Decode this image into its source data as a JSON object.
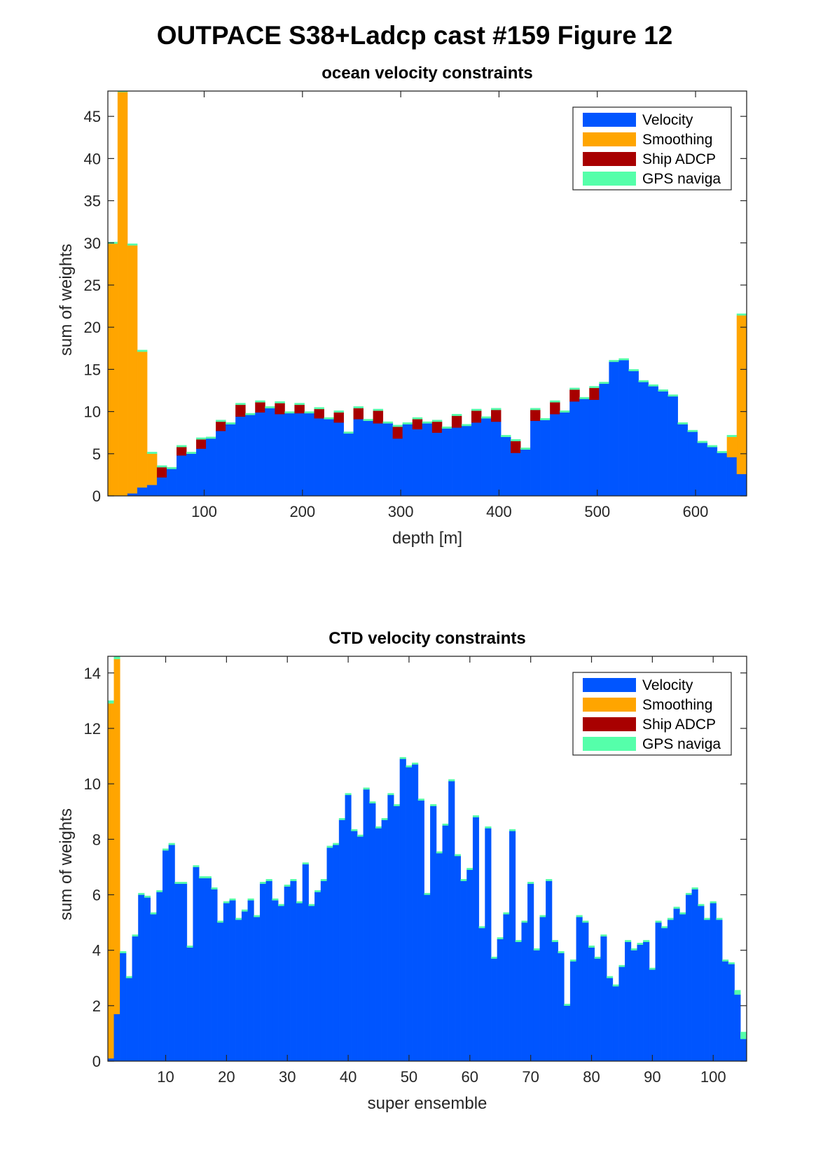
{
  "figure_title": "OUTPACE S38+Ladcp cast #159  Figure 12",
  "colors": {
    "velocity": "#0055ff",
    "smoothing": "#ffa500",
    "ship_adcp": "#a80000",
    "gps": "#55ffaa"
  },
  "chart_data": [
    {
      "type": "bar",
      "stacked": true,
      "title": "ocean velocity constraints",
      "xlabel": "depth [m]",
      "ylabel": "sum of weights",
      "xlim": [
        2,
        652
      ],
      "ylim": [
        0,
        48
      ],
      "xticks": [
        100,
        200,
        300,
        400,
        500,
        600
      ],
      "yticks": [
        0,
        5,
        10,
        15,
        20,
        25,
        30,
        35,
        40,
        45
      ],
      "legend": {
        "position": "top-right",
        "entries": [
          "Velocity",
          "Smoothing",
          "Ship ADCP",
          "GPS naviga"
        ]
      },
      "bin_width": 10,
      "x": [
        7,
        17,
        27,
        37,
        47,
        57,
        67,
        77,
        87,
        97,
        107,
        117,
        127,
        137,
        147,
        157,
        167,
        177,
        187,
        197,
        207,
        217,
        227,
        237,
        247,
        257,
        267,
        277,
        287,
        297,
        307,
        317,
        327,
        337,
        347,
        357,
        367,
        377,
        387,
        397,
        407,
        417,
        427,
        437,
        447,
        457,
        467,
        477,
        487,
        497,
        507,
        517,
        527,
        537,
        547,
        557,
        567,
        577,
        587,
        597,
        607,
        617,
        627,
        637,
        647
      ],
      "series": [
        {
          "name": "Velocity",
          "values": [
            0,
            0,
            0.3,
            1.0,
            1.3,
            2.2,
            3.2,
            4.8,
            5.0,
            5.6,
            6.8,
            7.7,
            8.5,
            9.4,
            9.6,
            9.9,
            10.4,
            9.7,
            9.8,
            9.8,
            9.8,
            9.2,
            9.1,
            8.7,
            7.4,
            9.1,
            8.9,
            8.6,
            8.6,
            6.8,
            8.5,
            7.9,
            8.6,
            7.5,
            8.0,
            8.1,
            8.3,
            8.7,
            9.2,
            8.8,
            7.0,
            5.1,
            5.5,
            8.9,
            9.0,
            9.7,
            9.9,
            11.2,
            11.5,
            11.4,
            13.3,
            15.9,
            16.1,
            14.8,
            13.5,
            13.0,
            12.4,
            11.8,
            8.5,
            7.6,
            6.3,
            5.8,
            5.1,
            4.6,
            2.6
          ]
        },
        {
          "name": "Smoothing",
          "values": [
            29.9,
            47.9,
            29.4,
            16.1,
            3.7,
            0,
            0,
            0,
            0,
            0,
            0,
            0,
            0,
            0,
            0,
            0,
            0,
            0,
            0,
            0,
            0,
            0,
            0,
            0,
            0,
            0,
            0,
            0,
            0,
            0,
            0,
            0,
            0,
            0,
            0,
            0,
            0,
            0,
            0,
            0,
            0,
            0,
            0,
            0,
            0,
            0,
            0,
            0,
            0,
            0,
            0,
            0,
            0,
            0,
            0,
            0,
            0,
            0,
            0,
            0,
            0,
            0,
            0,
            2.4,
            18.8
          ]
        },
        {
          "name": "Ship ADCP",
          "values": [
            0,
            0,
            0,
            0,
            0,
            1.2,
            0,
            1.0,
            0,
            1.1,
            0,
            1.1,
            0,
            1.4,
            0,
            1.2,
            0,
            1.3,
            0,
            1.0,
            0,
            1.1,
            0,
            1.2,
            0,
            1.3,
            0,
            1.5,
            0,
            1.4,
            0,
            1.2,
            0,
            1.3,
            0,
            1.4,
            0,
            1.4,
            0,
            1.4,
            0,
            1.4,
            0,
            1.3,
            0,
            1.4,
            0,
            1.4,
            0,
            1.4,
            0,
            0,
            0,
            0,
            0,
            0,
            0,
            0,
            0,
            0,
            0,
            0,
            0,
            0,
            0
          ]
        },
        {
          "name": "GPS naviga",
          "values": [
            0.2,
            0.2,
            0.2,
            0.2,
            0.2,
            0.2,
            0.2,
            0.2,
            0.2,
            0.2,
            0.2,
            0.2,
            0.2,
            0.2,
            0.2,
            0.2,
            0.2,
            0.2,
            0.2,
            0.2,
            0.2,
            0.2,
            0.2,
            0.2,
            0.2,
            0.2,
            0.2,
            0.2,
            0.2,
            0.2,
            0.2,
            0.2,
            0.2,
            0.2,
            0.2,
            0.2,
            0.2,
            0.2,
            0.2,
            0.2,
            0.2,
            0.2,
            0.2,
            0.2,
            0.2,
            0.2,
            0.2,
            0.2,
            0.2,
            0.2,
            0.2,
            0.2,
            0.2,
            0.2,
            0.2,
            0.2,
            0.2,
            0.2,
            0.2,
            0.2,
            0.2,
            0.2,
            0.2,
            0.2,
            0.2
          ]
        }
      ]
    },
    {
      "type": "bar",
      "stacked": true,
      "title": "CTD velocity constraints",
      "xlabel": "super ensemble",
      "ylabel": "sum of weights",
      "xlim": [
        0.5,
        105.5
      ],
      "ylim": [
        0,
        14.6
      ],
      "xticks": [
        10,
        20,
        30,
        40,
        50,
        60,
        70,
        80,
        90,
        100
      ],
      "yticks": [
        0,
        2,
        4,
        6,
        8,
        10,
        12,
        14
      ],
      "legend": {
        "position": "top-right",
        "entries": [
          "Velocity",
          "Smoothing",
          "Ship ADCP",
          "GPS naviga"
        ]
      },
      "bin_width": 1,
      "x": [
        1,
        2,
        3,
        4,
        5,
        6,
        7,
        8,
        9,
        10,
        11,
        12,
        13,
        14,
        15,
        16,
        17,
        18,
        19,
        20,
        21,
        22,
        23,
        24,
        25,
        26,
        27,
        28,
        29,
        30,
        31,
        32,
        33,
        34,
        35,
        36,
        37,
        38,
        39,
        40,
        41,
        42,
        43,
        44,
        45,
        46,
        47,
        48,
        49,
        50,
        51,
        52,
        53,
        54,
        55,
        56,
        57,
        58,
        59,
        60,
        61,
        62,
        63,
        64,
        65,
        66,
        67,
        68,
        69,
        70,
        71,
        72,
        73,
        74,
        75,
        76,
        77,
        78,
        79,
        80,
        81,
        82,
        83,
        84,
        85,
        86,
        87,
        88,
        89,
        90,
        91,
        92,
        93,
        94,
        95,
        96,
        97,
        98,
        99,
        100,
        101,
        102,
        103,
        104,
        105
      ],
      "series": [
        {
          "name": "Velocity",
          "values": [
            0.1,
            1.7,
            3.9,
            3.0,
            4.5,
            6.0,
            5.9,
            5.3,
            6.1,
            7.6,
            7.8,
            6.4,
            6.4,
            4.1,
            7.0,
            6.6,
            6.6,
            6.2,
            5.0,
            5.7,
            5.8,
            5.1,
            5.4,
            5.8,
            5.2,
            6.4,
            6.5,
            5.8,
            5.6,
            6.3,
            6.5,
            5.7,
            7.1,
            5.6,
            6.1,
            6.5,
            7.7,
            7.8,
            8.7,
            9.6,
            8.3,
            8.1,
            9.8,
            9.3,
            8.4,
            8.7,
            9.6,
            9.2,
            10.9,
            10.6,
            10.7,
            9.4,
            6.0,
            9.2,
            7.5,
            8.5,
            10.1,
            7.4,
            6.5,
            6.9,
            8.8,
            4.8,
            8.4,
            3.7,
            4.4,
            5.3,
            8.3,
            4.3,
            5.0,
            6.4,
            4.0,
            5.2,
            6.5,
            4.3,
            3.9,
            2.0,
            3.6,
            5.2,
            5.0,
            4.1,
            3.7,
            4.5,
            3.0,
            2.7,
            3.4,
            4.3,
            4.0,
            4.2,
            4.3,
            3.3,
            5.0,
            4.8,
            5.1,
            5.5,
            5.3,
            6.0,
            6.2,
            5.6,
            5.1,
            5.7,
            5.1,
            3.6,
            3.5,
            2.4,
            0.8
          ]
        },
        {
          "name": "Smoothing",
          "values": [
            12.8,
            12.8,
            0,
            0,
            0,
            0,
            0,
            0,
            0,
            0,
            0,
            0,
            0,
            0,
            0,
            0,
            0,
            0,
            0,
            0,
            0,
            0,
            0,
            0,
            0,
            0,
            0,
            0,
            0,
            0,
            0,
            0,
            0,
            0,
            0,
            0,
            0,
            0,
            0,
            0,
            0,
            0,
            0,
            0,
            0,
            0,
            0,
            0,
            0,
            0,
            0,
            0,
            0,
            0,
            0,
            0,
            0,
            0,
            0,
            0,
            0,
            0,
            0,
            0,
            0,
            0,
            0,
            0,
            0,
            0,
            0,
            0,
            0,
            0,
            0,
            0,
            0,
            0,
            0,
            0,
            0,
            0,
            0,
            0,
            0,
            0,
            0,
            0,
            0,
            0,
            0,
            0,
            0,
            0,
            0,
            0,
            0,
            0,
            0,
            0,
            0,
            0,
            0,
            0,
            0
          ]
        },
        {
          "name": "Ship ADCP",
          "values": [
            0,
            0,
            0,
            0,
            0,
            0,
            0,
            0,
            0,
            0,
            0,
            0,
            0,
            0,
            0,
            0,
            0,
            0,
            0,
            0,
            0,
            0,
            0,
            0,
            0,
            0,
            0,
            0,
            0,
            0,
            0,
            0,
            0,
            0,
            0,
            0,
            0,
            0,
            0,
            0,
            0,
            0,
            0,
            0,
            0,
            0,
            0,
            0,
            0,
            0,
            0,
            0,
            0,
            0,
            0,
            0,
            0,
            0,
            0,
            0,
            0,
            0,
            0,
            0,
            0,
            0,
            0,
            0,
            0,
            0,
            0,
            0,
            0,
            0,
            0,
            0,
            0,
            0,
            0,
            0,
            0,
            0,
            0,
            0,
            0,
            0,
            0,
            0,
            0,
            0,
            0,
            0,
            0,
            0,
            0,
            0,
            0,
            0,
            0,
            0,
            0,
            0,
            0,
            0,
            0
          ]
        },
        {
          "name": "GPS naviga",
          "values": [
            0.1,
            0.1,
            0.06,
            0.06,
            0.06,
            0.06,
            0.06,
            0.06,
            0.06,
            0.06,
            0.06,
            0.06,
            0.06,
            0.06,
            0.06,
            0.06,
            0.06,
            0.06,
            0.06,
            0.06,
            0.06,
            0.06,
            0.06,
            0.06,
            0.06,
            0.06,
            0.06,
            0.06,
            0.06,
            0.06,
            0.06,
            0.06,
            0.06,
            0.06,
            0.06,
            0.06,
            0.06,
            0.06,
            0.06,
            0.06,
            0.06,
            0.06,
            0.06,
            0.06,
            0.06,
            0.06,
            0.06,
            0.06,
            0.06,
            0.06,
            0.06,
            0.06,
            0.06,
            0.06,
            0.06,
            0.06,
            0.06,
            0.06,
            0.06,
            0.06,
            0.06,
            0.06,
            0.06,
            0.06,
            0.06,
            0.06,
            0.06,
            0.06,
            0.06,
            0.06,
            0.06,
            0.06,
            0.06,
            0.06,
            0.06,
            0.06,
            0.06,
            0.06,
            0.06,
            0.06,
            0.06,
            0.06,
            0.06,
            0.06,
            0.06,
            0.06,
            0.06,
            0.06,
            0.06,
            0.06,
            0.06,
            0.06,
            0.06,
            0.06,
            0.06,
            0.06,
            0.06,
            0.06,
            0.06,
            0.06,
            0.06,
            0.06,
            0.06,
            0.16,
            0.25
          ]
        }
      ]
    }
  ]
}
